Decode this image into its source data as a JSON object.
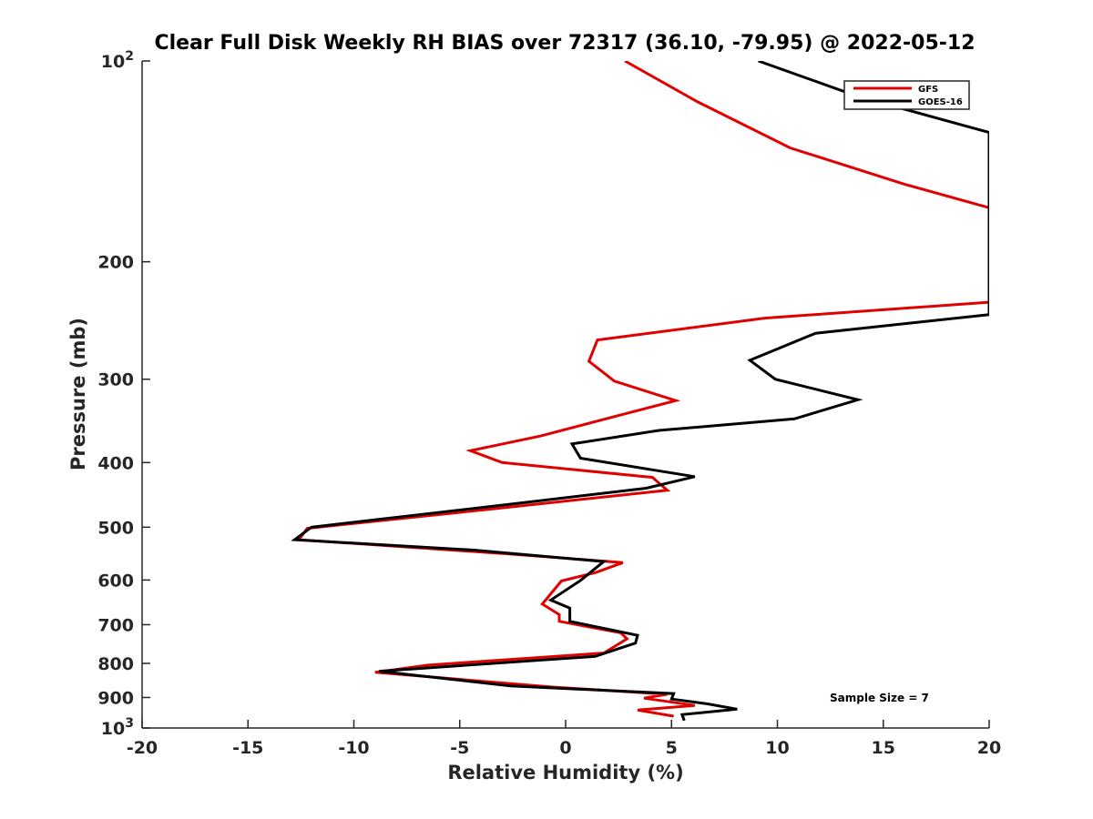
{
  "chart_data": {
    "type": "line",
    "title": "Clear Full Disk Weekly RH BIAS over 72317 (36.10, -79.95) @ 2022-05-12",
    "xlabel": "Relative Humidity (%)",
    "ylabel": "Pressure (mb)",
    "xlim": [
      -20,
      20
    ],
    "ylim": [
      100,
      1000
    ],
    "y_scale": "log",
    "y_reversed": true,
    "grid": false,
    "legend_position": "top-right",
    "x_ticks": [
      {
        "value": -20,
        "label": "-20"
      },
      {
        "value": -15,
        "label": "-15"
      },
      {
        "value": -10,
        "label": "-10"
      },
      {
        "value": -5,
        "label": "-5"
      },
      {
        "value": 0,
        "label": "0"
      },
      {
        "value": 5,
        "label": "5"
      },
      {
        "value": 10,
        "label": "10"
      },
      {
        "value": 15,
        "label": "15"
      },
      {
        "value": 20,
        "label": "20"
      }
    ],
    "y_ticks": [
      {
        "value": 100,
        "base": "10",
        "exp": "2"
      },
      {
        "value": 200,
        "label": "200"
      },
      {
        "value": 300,
        "label": "300"
      },
      {
        "value": 400,
        "label": "400"
      },
      {
        "value": 500,
        "label": "500"
      },
      {
        "value": 600,
        "label": "600"
      },
      {
        "value": 700,
        "label": "700"
      },
      {
        "value": 800,
        "label": "800"
      },
      {
        "value": 900,
        "label": "900"
      },
      {
        "value": 1000,
        "base": "10",
        "exp": "3"
      }
    ],
    "series": [
      {
        "name": "GFS",
        "color": "#e00000",
        "points": [
          [
            2.8,
            100
          ],
          [
            6.2,
            115
          ],
          [
            10.6,
            135
          ],
          [
            16,
            153
          ],
          [
            20,
            166
          ],
          [
            20,
            230
          ],
          [
            9.4,
            243
          ],
          [
            1.5,
            262
          ],
          [
            1.1,
            282
          ],
          [
            2.3,
            302
          ],
          [
            5.2,
            323
          ],
          [
            2.2,
            342
          ],
          [
            -1.2,
            365
          ],
          [
            -4.5,
            384
          ],
          [
            -3.0,
            400
          ],
          [
            4.1,
            421
          ],
          [
            4.8,
            440
          ],
          [
            -3.6,
            470
          ],
          [
            -12.2,
            502
          ],
          [
            -12.6,
            522
          ],
          [
            -2.8,
            548
          ],
          [
            2.7,
            565
          ],
          [
            1.4,
            585
          ],
          [
            -0.2,
            602
          ],
          [
            -1.1,
            652
          ],
          [
            -0.3,
            676
          ],
          [
            -0.3,
            692
          ],
          [
            2.6,
            720
          ],
          [
            2.9,
            735
          ],
          [
            1.8,
            772
          ],
          [
            -6.5,
            805
          ],
          [
            -9.0,
            825
          ],
          [
            -0.7,
            868
          ],
          [
            4.8,
            890
          ],
          [
            3.7,
            902
          ],
          [
            6.1,
            925
          ],
          [
            3.4,
            940
          ],
          [
            5.1,
            960
          ]
        ]
      },
      {
        "name": "GOES-16",
        "color": "#000000",
        "points": [
          [
            9.1,
            100
          ],
          [
            13.8,
            113
          ],
          [
            20,
            128
          ],
          [
            20,
            240
          ],
          [
            11.8,
            256
          ],
          [
            8.7,
            281
          ],
          [
            9.9,
            300
          ],
          [
            13.8,
            322
          ],
          [
            10.8,
            344
          ],
          [
            4.4,
            358
          ],
          [
            0.3,
            375
          ],
          [
            0.7,
            394
          ],
          [
            6.1,
            420
          ],
          [
            3.8,
            437
          ],
          [
            -2.4,
            461
          ],
          [
            -12.0,
            500
          ],
          [
            -12.8,
            522
          ],
          [
            -4.4,
            541
          ],
          [
            1.8,
            563
          ],
          [
            1.3,
            580
          ],
          [
            0.7,
            601
          ],
          [
            -0.7,
            643
          ],
          [
            0.2,
            661
          ],
          [
            0.2,
            692
          ],
          [
            3.4,
            726
          ],
          [
            3.3,
            746
          ],
          [
            1.4,
            781
          ],
          [
            -8.8,
            822
          ],
          [
            -2.6,
            865
          ],
          [
            5.1,
            888
          ],
          [
            5.0,
            905
          ],
          [
            6.7,
            920
          ],
          [
            8.1,
            937
          ],
          [
            5.5,
            955
          ],
          [
            5.6,
            975
          ]
        ]
      }
    ],
    "annotation": "Sample Size = 7"
  }
}
